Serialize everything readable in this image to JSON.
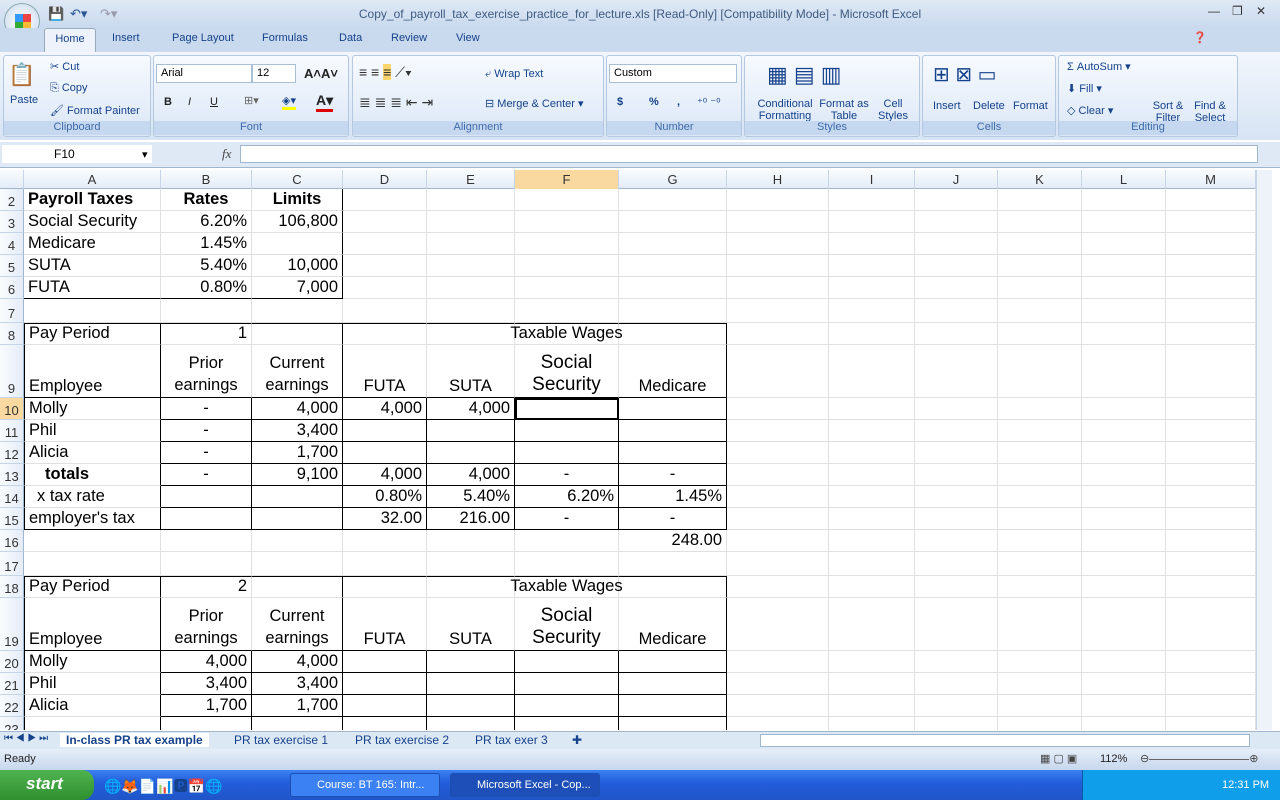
{
  "window": {
    "title": "Copy_of_payroll_tax_exercise_practice_for_lecture.xls  [Read-Only]  [Compatibility Mode] - Microsoft Excel"
  },
  "ribbon_tabs": [
    "Home",
    "Insert",
    "Page Layout",
    "Formulas",
    "Data",
    "Review",
    "View"
  ],
  "clipboard": {
    "paste": "Paste",
    "cut": "Cut",
    "copy": "Copy",
    "format_painter": "Format Painter",
    "label": "Clipboard"
  },
  "font": {
    "name": "Arial",
    "size": "12",
    "label": "Font",
    "bold": "B",
    "italic": "I",
    "underline": "U"
  },
  "alignment": {
    "wrap": "Wrap Text",
    "merge": "Merge & Center",
    "label": "Alignment"
  },
  "number": {
    "format": "Custom",
    "currency": "$",
    "percent": "%",
    "comma": ",",
    "label": "Number"
  },
  "styles": {
    "conditional": "Conditional Formatting",
    "format_table": "Format as Table",
    "cell_styles": "Cell Styles",
    "label": "Styles"
  },
  "cells": {
    "insert": "Insert",
    "delete": "Delete",
    "format": "Format",
    "label": "Cells"
  },
  "editing": {
    "autosum": "AutoSum",
    "fill": "Fill",
    "clear": "Clear",
    "sort": "Sort & Filter",
    "find": "Find & Select",
    "label": "Editing"
  },
  "formula_bar": {
    "name_box": "F10",
    "fx": "fx",
    "value": ""
  },
  "columns": [
    "A",
    "B",
    "C",
    "D",
    "E",
    "F",
    "G",
    "H",
    "I",
    "J",
    "K",
    "L",
    "M"
  ],
  "selected": {
    "col": "F",
    "row": "10"
  },
  "rows": [
    {
      "n": "2",
      "cells": {
        "A": "Payroll Taxes",
        "B": "Rates",
        "C": "Limits"
      }
    },
    {
      "n": "3",
      "cells": {
        "A": "Social Security",
        "B": "6.20%",
        "C": "106,800"
      }
    },
    {
      "n": "4",
      "cells": {
        "A": "Medicare",
        "B": "1.45%"
      }
    },
    {
      "n": "5",
      "cells": {
        "A": "SUTA",
        "B": "5.40%",
        "C": "10,000"
      }
    },
    {
      "n": "6",
      "cells": {
        "A": "FUTA",
        "B": "0.80%",
        "C": "7,000"
      }
    },
    {
      "n": "7",
      "cells": {}
    },
    {
      "n": "8",
      "cells": {
        "A": "Pay Period",
        "B": "1",
        "F": "Taxable Wages"
      }
    },
    {
      "n": "9",
      "cells": {
        "A": "Employee",
        "B": "Prior earnings",
        "C": "Current earnings",
        "D": "FUTA",
        "E": "SUTA",
        "F": "Social Security",
        "G": "Medicare"
      }
    },
    {
      "n": "10",
      "cells": {
        "A": "Molly",
        "B": "-",
        "C": "4,000",
        "D": "4,000",
        "E": "4,000"
      }
    },
    {
      "n": "11",
      "cells": {
        "A": "Phil",
        "B": "-",
        "C": "3,400"
      }
    },
    {
      "n": "12",
      "cells": {
        "A": "Alicia",
        "B": "-",
        "C": "1,700"
      }
    },
    {
      "n": "13",
      "cells": {
        "A": "totals",
        "B": "-",
        "C": "9,100",
        "D": "4,000",
        "E": "4,000",
        "F": "-",
        "G": "-"
      }
    },
    {
      "n": "14",
      "cells": {
        "A": "x tax rate",
        "D": "0.80%",
        "E": "5.40%",
        "F": "6.20%",
        "G": "1.45%"
      }
    },
    {
      "n": "15",
      "cells": {
        "A": "employer's tax",
        "D": "32.00",
        "E": "216.00",
        "F": "-",
        "G": "-"
      }
    },
    {
      "n": "16",
      "cells": {
        "G": "248.00"
      }
    },
    {
      "n": "17",
      "cells": {}
    },
    {
      "n": "18",
      "cells": {
        "A": "Pay Period",
        "B": "2",
        "F": "Taxable Wages"
      }
    },
    {
      "n": "19",
      "cells": {
        "A": "Employee",
        "B": "Prior earnings",
        "C": "Current earnings",
        "D": "FUTA",
        "E": "SUTA",
        "F": "Social Security",
        "G": "Medicare"
      }
    },
    {
      "n": "20",
      "cells": {
        "A": "Molly",
        "B": "4,000",
        "C": "4,000"
      }
    },
    {
      "n": "21",
      "cells": {
        "A": "Phil",
        "B": "3,400",
        "C": "3,400"
      }
    },
    {
      "n": "22",
      "cells": {
        "A": "Alicia",
        "B": "1,700",
        "C": "1,700"
      }
    },
    {
      "n": "23",
      "cells": {}
    }
  ],
  "sheet_tabs": [
    "In-class PR tax example",
    "PR tax exercise 1",
    "PR tax exercise 2",
    "PR tax exer 3"
  ],
  "status": {
    "ready": "Ready",
    "zoom": "112%"
  },
  "taskbar": {
    "start": "start",
    "tasks": [
      "Course: BT 165: Intr...",
      "Microsoft Excel - Cop..."
    ],
    "clock": "12:31 PM"
  }
}
